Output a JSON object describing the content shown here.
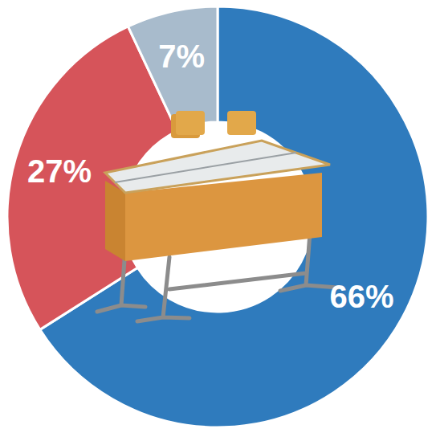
{
  "chart_data": {
    "type": "pie",
    "values": [
      66,
      27,
      7
    ],
    "value_labels": [
      "66%",
      "27%",
      "7%"
    ],
    "colors": [
      "#2f7bbd",
      "#d6545a",
      "#a8bbcc"
    ],
    "data_labels": true
  }
}
